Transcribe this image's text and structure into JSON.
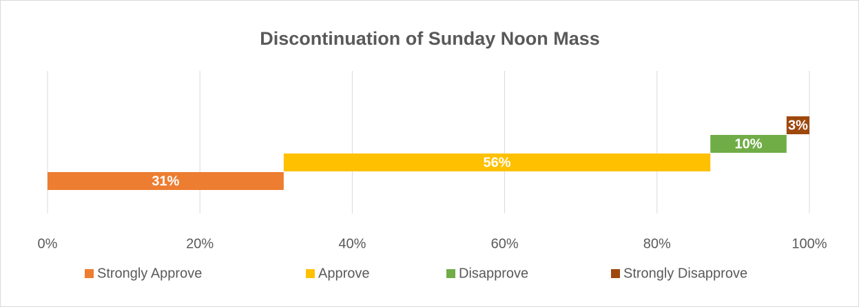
{
  "chart_data": {
    "type": "bar",
    "orientation": "horizontal",
    "stacked": true,
    "title": "Discontinuation of Sunday Noon Mass",
    "series": [
      {
        "name": "Strongly Approve",
        "color": "#ed7d31",
        "values": [
          31
        ],
        "value_labels": [
          "31%"
        ]
      },
      {
        "name": "Approve",
        "color": "#ffc000",
        "values": [
          56
        ],
        "value_labels": [
          "56%"
        ]
      },
      {
        "name": "Disapprove",
        "color": "#70ad47",
        "values": [
          10
        ],
        "value_labels": [
          "10%"
        ]
      },
      {
        "name": "Strongly Disapprove",
        "color": "#9e480e",
        "values": [
          3
        ],
        "value_labels": [
          "3%"
        ]
      }
    ],
    "xlim": [
      0,
      100
    ],
    "xticks": [
      {
        "value": 0,
        "label": "0%"
      },
      {
        "value": 20,
        "label": "20%"
      },
      {
        "value": 40,
        "label": "40%"
      },
      {
        "value": 60,
        "label": "60%"
      },
      {
        "value": 80,
        "label": "80%"
      },
      {
        "value": 100,
        "label": "100%"
      }
    ],
    "grid": true,
    "legend": "bottom"
  }
}
